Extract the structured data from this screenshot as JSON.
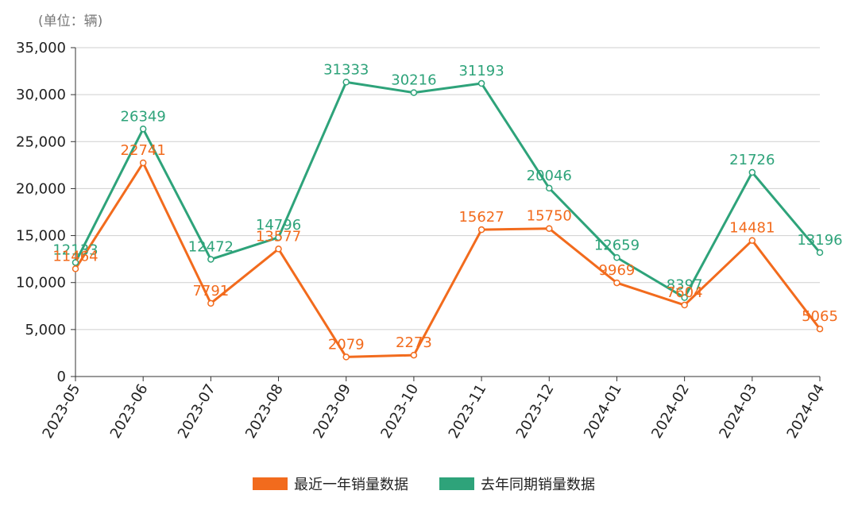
{
  "chart_data": {
    "type": "line",
    "unit_label": "(单位：辆)",
    "categories": [
      "2023-05",
      "2023-06",
      "2023-07",
      "2023-08",
      "2023-09",
      "2023-10",
      "2023-11",
      "2023-12",
      "2024-01",
      "2024-02",
      "2024-03",
      "2024-04"
    ],
    "yticks": [
      "0",
      "5,000",
      "10,000",
      "15,000",
      "20,000",
      "25,000",
      "30,000",
      "35,000"
    ],
    "ylim": [
      0,
      35000
    ],
    "grid": true,
    "legend_position": "bottom",
    "series": [
      {
        "name": "最近一年销量数据",
        "color": "#F26B1D",
        "values": [
          11464,
          22741,
          7791,
          13577,
          2079,
          2273,
          15627,
          15750,
          9969,
          7604,
          14481,
          5065
        ],
        "labels": [
          "11464",
          "22741",
          "7791",
          "13577",
          "2079",
          "2273",
          "15627",
          "15750",
          "9969",
          "7604",
          "14481",
          "5065"
        ]
      },
      {
        "name": "去年同期销量数据",
        "color": "#2EA37A",
        "values": [
          12133,
          26349,
          12472,
          14796,
          31333,
          30216,
          31193,
          20046,
          12659,
          8397,
          21726,
          13196
        ],
        "labels": [
          "12133",
          "26349",
          "12472",
          "14796",
          "31333",
          "30216",
          "31193",
          "20046",
          "12659",
          "8397",
          "21726",
          "13196"
        ]
      }
    ]
  }
}
